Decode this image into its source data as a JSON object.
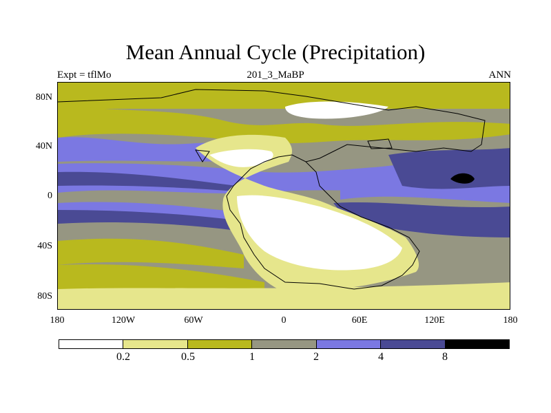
{
  "title": "Mean Annual Cycle (Precipitation)",
  "subtitle_left": "Expt = tflMo",
  "subtitle_center": "201_3_MaBP",
  "subtitle_right": "ANN",
  "y_axis_labels": [
    "80N",
    "40N",
    "0",
    "40S",
    "80S"
  ],
  "x_axis_labels": [
    "180",
    "120W",
    "60W",
    "0",
    "60E",
    "120E",
    "180"
  ],
  "colorbar": {
    "colors": [
      "#ffffff",
      "#e6e68c",
      "#b9b91e",
      "#969682",
      "#7b78e2",
      "#4a4a94",
      "#000000"
    ],
    "labels": [
      "0.2",
      "0.5",
      "1",
      "2",
      "4",
      "8"
    ]
  }
}
